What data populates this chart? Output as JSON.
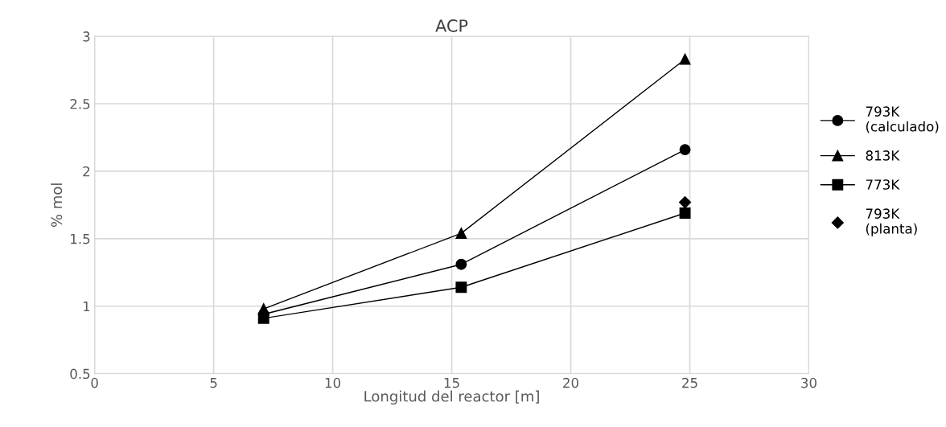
{
  "chart_data": {
    "type": "line",
    "title": "ACP",
    "xlabel": "Longitud del reactor [m]",
    "ylabel": "% mol",
    "xlim": [
      0,
      30
    ],
    "xticks": [
      0,
      5,
      10,
      15,
      20,
      25,
      30
    ],
    "ylim": [
      0.5,
      3
    ],
    "yticks": [
      0.5,
      1,
      1.5,
      2,
      2.5,
      3
    ],
    "grid": true,
    "legend": "right",
    "series": [
      {
        "name": "793K\n(calculado)",
        "marker": "circle",
        "color": "#000000",
        "x": [
          7.1,
          15.4,
          24.8
        ],
        "values": [
          0.94,
          1.31,
          2.16
        ]
      },
      {
        "name": "813K",
        "marker": "triangle",
        "color": "#000000",
        "x": [
          7.1,
          15.4,
          24.8
        ],
        "values": [
          0.98,
          1.54,
          2.83
        ]
      },
      {
        "name": "773K",
        "marker": "square",
        "color": "#000000",
        "x": [
          7.1,
          15.4,
          24.8
        ],
        "values": [
          0.91,
          1.14,
          1.69
        ]
      },
      {
        "name": "793K\n(planta)",
        "type": "scatter",
        "marker": "diamond",
        "color": "#000000",
        "x": [
          24.8
        ],
        "values": [
          1.77
        ]
      }
    ]
  }
}
